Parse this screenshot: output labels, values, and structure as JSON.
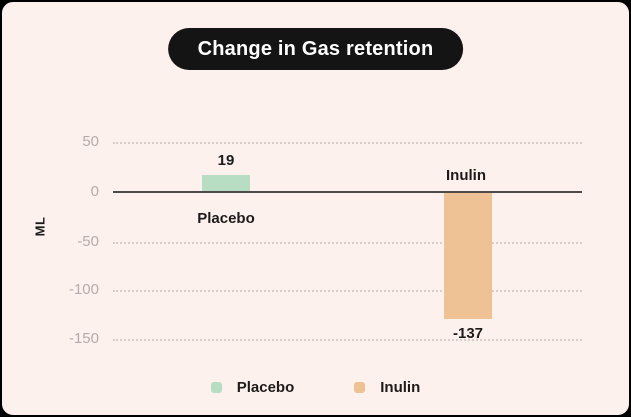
{
  "title": "Change in Gas retention",
  "colors": {
    "frame": "#000000",
    "card_background": "#fdf1ee",
    "pill_background": "#141414",
    "title_text": "#ffffff",
    "placebo": "#b7dec3",
    "inulin": "#eec294",
    "zero_line": "#4d4a47",
    "gridline": "#d7cdca",
    "tick_text": "#b5abaa",
    "label_text": "#1d1b1a"
  },
  "chart_data": {
    "type": "bar",
    "title": "Change in Gas retention",
    "categories": [
      "Placebo",
      "Inulin"
    ],
    "values": [
      19,
      -137
    ],
    "value_labels": [
      "19",
      "-137"
    ],
    "series_colors": [
      "#b7dec3",
      "#eec294"
    ],
    "xlabel": "",
    "ylabel": "ML",
    "yticks": [
      50,
      0,
      -50,
      -100,
      -150
    ],
    "ytick_labels": [
      "50",
      "0",
      "-50",
      "-100",
      "-150"
    ],
    "ylim": [
      -150,
      50
    ],
    "grid": "horizontal dotted, solid zero baseline",
    "legend_position": "bottom"
  },
  "legend": {
    "items": [
      {
        "label": "Placebo",
        "color": "#b7dec3"
      },
      {
        "label": "Inulin",
        "color": "#eec294"
      }
    ]
  }
}
